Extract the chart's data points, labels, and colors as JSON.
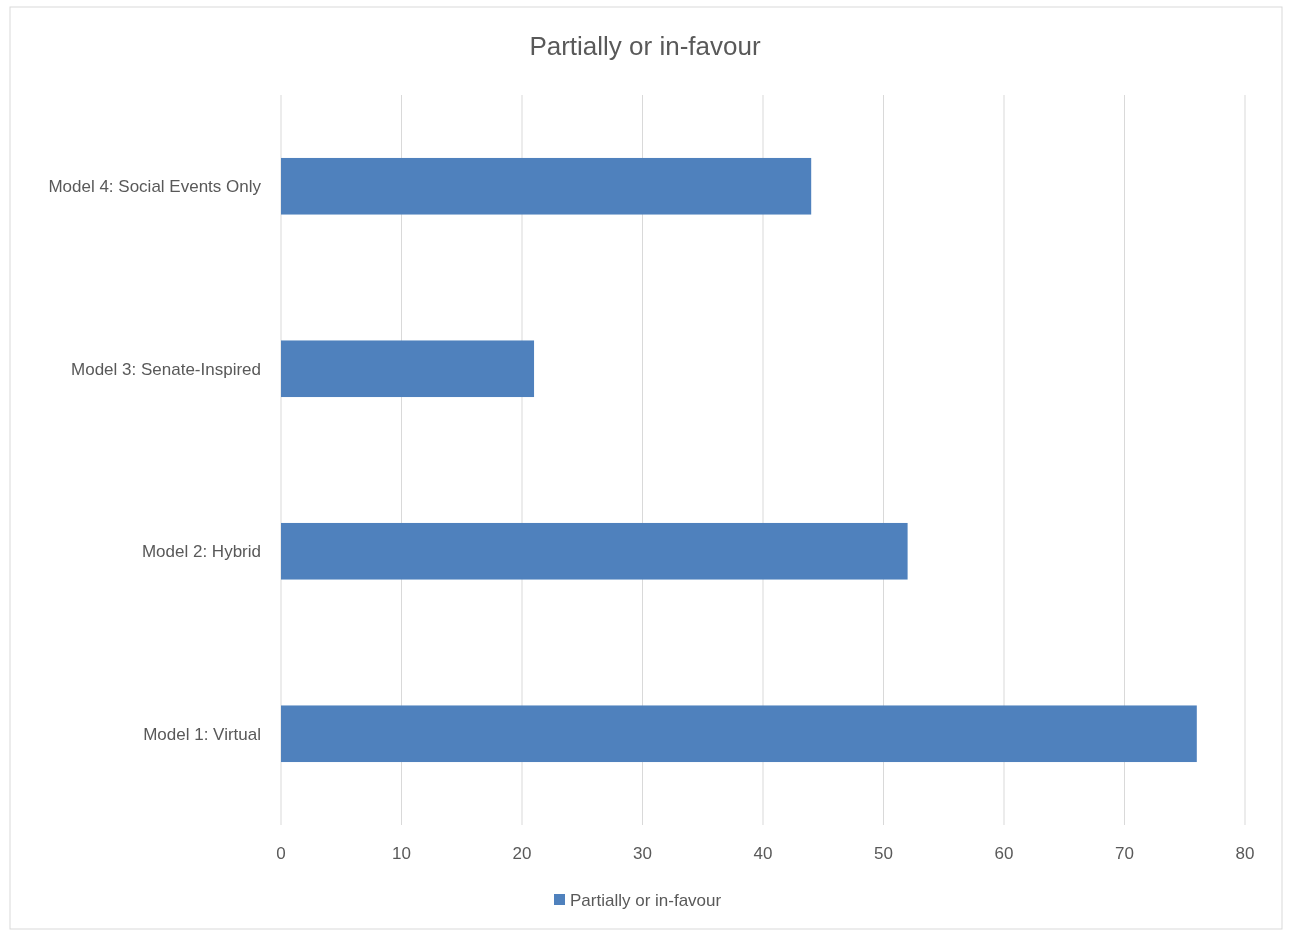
{
  "chart_data": {
    "type": "bar",
    "orientation": "horizontal",
    "title": "Partially or in-favour",
    "categories": [
      "Model 4: Social Events Only",
      "Model 3: Senate-Inspired",
      "Model 2: Hybrid",
      "Model 1: Virtual"
    ],
    "series": [
      {
        "name": "Partially or in-favour",
        "color": "#4f81bd",
        "values": [
          44,
          21,
          52,
          76
        ]
      }
    ],
    "xlim": [
      0,
      80
    ],
    "xticks": [
      0,
      10,
      20,
      30,
      40,
      50,
      60,
      70,
      80
    ],
    "grid": "x",
    "legend": "bottom"
  }
}
